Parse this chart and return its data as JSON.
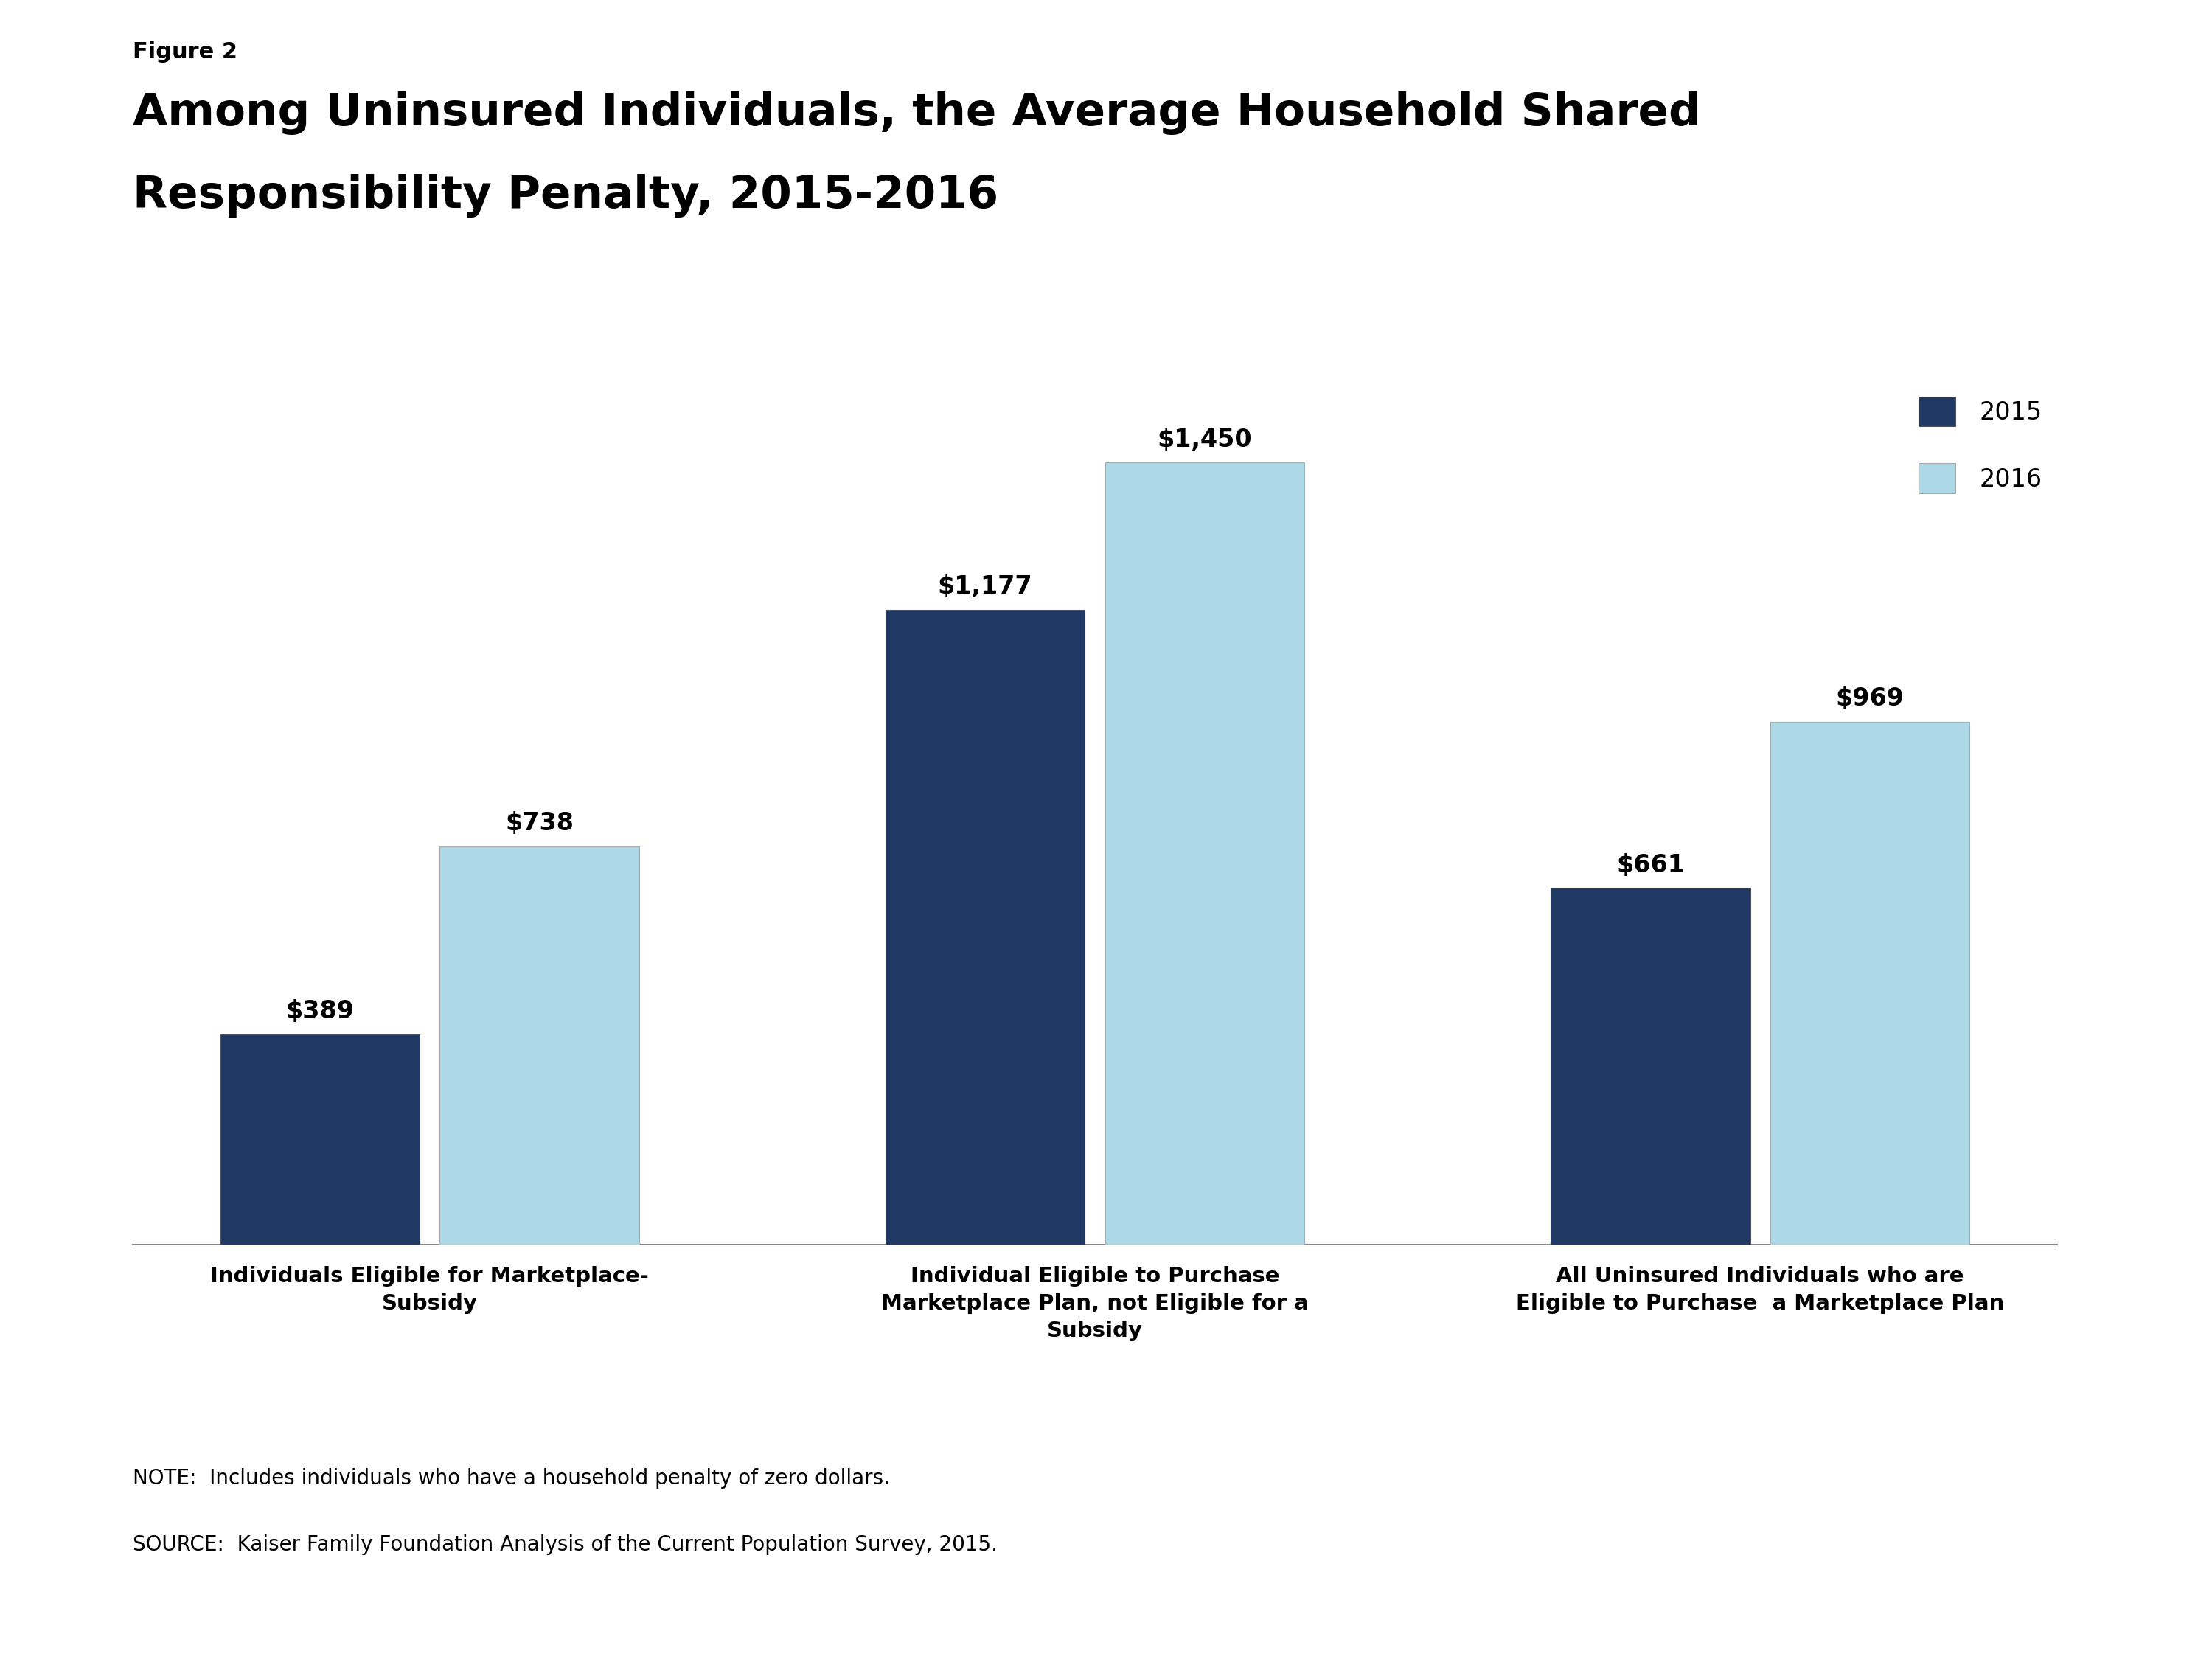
{
  "figure_label": "Figure 2",
  "title_line1": "Among Uninsured Individuals, the Average Household Shared",
  "title_line2": "Responsibility Penalty, 2015-2016",
  "categories": [
    "Individuals Eligible for Marketplace-\nSubsidy",
    "Individual Eligible to Purchase\nMarketplace Plan, not Eligible for a\nSubsidy",
    "All Uninsured Individuals who are\nEligible to Purchase  a Marketplace Plan"
  ],
  "values_2015": [
    389,
    1177,
    661
  ],
  "values_2016": [
    738,
    1450,
    969
  ],
  "labels_2015": [
    "$389",
    "$1,177",
    "$661"
  ],
  "labels_2016": [
    "$738",
    "$1,450",
    "$969"
  ],
  "color_2015": "#1f3864",
  "color_2016": "#add8e6",
  "legend_labels": [
    "2015",
    "2016"
  ],
  "ylim": [
    0,
    1600
  ],
  "note_line1": "NOTE:  Includes individuals who have a household penalty of zero dollars.",
  "note_line2": "SOURCE:  Kaiser Family Foundation Analysis of the Current Population Survey, 2015.",
  "background_color": "#ffffff",
  "logo_color": "#1f3864"
}
